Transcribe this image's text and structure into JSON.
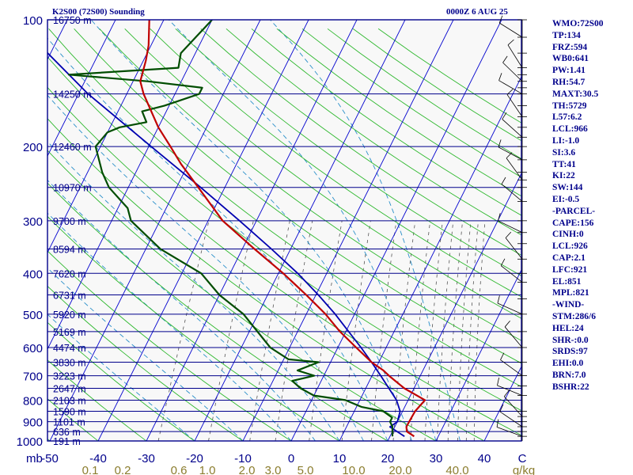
{
  "header": {
    "station": "K2S00 (72S00) Sounding",
    "time": "0000Z  6 AUG 25"
  },
  "colors": {
    "background": "#f8f8f8",
    "isobar": "#00008b",
    "isotherm": "#0000cd",
    "dry_adiabat": "#2eb82e",
    "moist_adiabat": "#2a8fc9",
    "mixing_ratio": "#555555",
    "temperature": "#c00000",
    "dewpoint": "#004d00",
    "parcel": "#0000b0",
    "tick_text_bottom": "#8b7d2e"
  },
  "chart_data": {
    "type": "skew-t",
    "pressure_unit": "mb",
    "temperature_unit": "C",
    "mixing_ratio_unit": "g/kg",
    "y_axis_scale": "log-pressure",
    "x_axis_skewed": true,
    "pressure_range": [
      1000,
      100
    ],
    "pressure_ticks": [
      100,
      200,
      300,
      400,
      500,
      600,
      700,
      800,
      900,
      1000
    ],
    "temperature_ticks": [
      -50,
      -40,
      -30,
      -20,
      -10,
      0,
      10,
      20,
      30,
      40
    ],
    "temperature_tick_labels": [
      "-50",
      "-40",
      "-30",
      "-20",
      "-10",
      "0",
      "10",
      "20",
      "30",
      "40"
    ],
    "mixing_ratio_labels": [
      "0.1",
      "0.2",
      "0.6",
      "1.0",
      "2.0",
      "3.0",
      "5.0",
      "10.0",
      "20.0",
      "40.0"
    ],
    "height_labels": [
      {
        "p": 100,
        "label": "16750 m"
      },
      {
        "p": 150,
        "label": "14250 m"
      },
      {
        "p": 200,
        "label": "12460 m"
      },
      {
        "p": 250,
        "label": "10970 m"
      },
      {
        "p": 300,
        "label": "9700 m"
      },
      {
        "p": 350,
        "label": "8594 m"
      },
      {
        "p": 400,
        "label": "7620 m"
      },
      {
        "p": 450,
        "label": "6731 m"
      },
      {
        "p": 500,
        "label": "5920 m"
      },
      {
        "p": 550,
        "label": "5169 m"
      },
      {
        "p": 600,
        "label": "4474 m"
      },
      {
        "p": 650,
        "label": "3830 m"
      },
      {
        "p": 700,
        "label": "3223 m"
      },
      {
        "p": 750,
        "label": "2647 m"
      },
      {
        "p": 800,
        "label": "2103 m"
      },
      {
        "p": 850,
        "label": "1590 m"
      },
      {
        "p": 900,
        "label": "1101 m"
      },
      {
        "p": 950,
        "label": "636 m"
      },
      {
        "p": 1000,
        "label": "191 m"
      }
    ],
    "series": [
      {
        "name": "temperature",
        "points": [
          {
            "p": 975,
            "t": 25.0
          },
          {
            "p": 950,
            "t": 23.0
          },
          {
            "p": 925,
            "t": 22.4
          },
          {
            "p": 880,
            "t": 22.5
          },
          {
            "p": 850,
            "t": 22.6
          },
          {
            "p": 800,
            "t": 23.5
          },
          {
            "p": 750,
            "t": 18.0
          },
          {
            "p": 700,
            "t": 13.5
          },
          {
            "p": 680,
            "t": 11.8
          },
          {
            "p": 650,
            "t": 8.5
          },
          {
            "p": 600,
            "t": 3.8
          },
          {
            "p": 550,
            "t": -1.2
          },
          {
            "p": 500,
            "t": -6.0
          },
          {
            "p": 450,
            "t": -12.0
          },
          {
            "p": 400,
            "t": -19.0
          },
          {
            "p": 350,
            "t": -27.5
          },
          {
            "p": 300,
            "t": -37.0
          },
          {
            "p": 250,
            "t": -45.5
          },
          {
            "p": 220,
            "t": -51.5
          },
          {
            "p": 200,
            "t": -55.5
          },
          {
            "p": 180,
            "t": -60.0
          },
          {
            "p": 150,
            "t": -66.5
          },
          {
            "p": 140,
            "t": -68.5
          },
          {
            "p": 125,
            "t": -69.5
          },
          {
            "p": 115,
            "t": -70.5
          },
          {
            "p": 100,
            "t": -73.0
          }
        ]
      },
      {
        "name": "dewpoint",
        "points": [
          {
            "p": 975,
            "t": 20.5
          },
          {
            "p": 950,
            "t": 20.0
          },
          {
            "p": 925,
            "t": 19.5
          },
          {
            "p": 900,
            "t": 18.5
          },
          {
            "p": 880,
            "t": 18.5
          },
          {
            "p": 850,
            "t": 16.0
          },
          {
            "p": 830,
            "t": 11.0
          },
          {
            "p": 800,
            "t": 7.0
          },
          {
            "p": 780,
            "t": 0.0
          },
          {
            "p": 750,
            "t": -3.5
          },
          {
            "p": 720,
            "t": -6.0
          },
          {
            "p": 700,
            "t": -2.0
          },
          {
            "p": 680,
            "t": -6.0
          },
          {
            "p": 650,
            "t": -2.5
          },
          {
            "p": 640,
            "t": -9.0
          },
          {
            "p": 600,
            "t": -14.0
          },
          {
            "p": 500,
            "t": -23.0
          },
          {
            "p": 450,
            "t": -30.0
          },
          {
            "p": 400,
            "t": -36.0
          },
          {
            "p": 350,
            "t": -47.0
          },
          {
            "p": 300,
            "t": -56.0
          },
          {
            "p": 280,
            "t": -58.0
          },
          {
            "p": 250,
            "t": -64.0
          },
          {
            "p": 230,
            "t": -67.0
          },
          {
            "p": 200,
            "t": -71.0
          },
          {
            "p": 185,
            "t": -70.0
          },
          {
            "p": 180,
            "t": -68.0
          },
          {
            "p": 175,
            "t": -63.0
          },
          {
            "p": 165,
            "t": -65.0
          },
          {
            "p": 160,
            "t": -61.0
          },
          {
            "p": 150,
            "t": -55.0
          },
          {
            "p": 145,
            "t": -55.0
          },
          {
            "p": 140,
            "t": -67.0
          },
          {
            "p": 135,
            "t": -84.0
          },
          {
            "p": 130,
            "t": -62.0
          },
          {
            "p": 120,
            "t": -63.0
          },
          {
            "p": 100,
            "t": -60.0
          }
        ]
      },
      {
        "name": "parcel",
        "points": [
          {
            "p": 975,
            "t": 23.0
          },
          {
            "p": 926,
            "t": 19.0
          },
          {
            "p": 900,
            "t": 20.0
          },
          {
            "p": 850,
            "t": 19.5
          },
          {
            "p": 800,
            "t": 17.6
          },
          {
            "p": 750,
            "t": 14.8
          },
          {
            "p": 700,
            "t": 11.8
          },
          {
            "p": 650,
            "t": 8.5
          },
          {
            "p": 600,
            "t": 4.8
          },
          {
            "p": 550,
            "t": 0.6
          },
          {
            "p": 500,
            "t": -4.0
          },
          {
            "p": 450,
            "t": -9.5
          },
          {
            "p": 400,
            "t": -16.0
          },
          {
            "p": 350,
            "t": -24.0
          },
          {
            "p": 300,
            "t": -33.5
          },
          {
            "p": 250,
            "t": -45.0
          },
          {
            "p": 200,
            "t": -59.5
          },
          {
            "p": 150,
            "t": -78.0
          },
          {
            "p": 115,
            "t": -93.0
          }
        ]
      }
    ],
    "wind_barbs": [
      {
        "p": 975
      },
      {
        "p": 950
      },
      {
        "p": 925
      },
      {
        "p": 900
      },
      {
        "p": 875
      },
      {
        "p": 850
      },
      {
        "p": 780
      },
      {
        "p": 740
      },
      {
        "p": 700
      },
      {
        "p": 650
      },
      {
        "p": 600
      },
      {
        "p": 550
      },
      {
        "p": 500
      },
      {
        "p": 460
      },
      {
        "p": 420
      },
      {
        "p": 400
      },
      {
        "p": 370
      },
      {
        "p": 340
      },
      {
        "p": 320
      },
      {
        "p": 300
      },
      {
        "p": 270
      },
      {
        "p": 250
      },
      {
        "p": 240
      },
      {
        "p": 230
      },
      {
        "p": 215
      },
      {
        "p": 200
      },
      {
        "p": 190
      },
      {
        "p": 180
      },
      {
        "p": 170
      },
      {
        "p": 160
      },
      {
        "p": 150
      },
      {
        "p": 145
      },
      {
        "p": 140
      },
      {
        "p": 135
      },
      {
        "p": 130
      },
      {
        "p": 120
      },
      {
        "p": 110
      },
      {
        "p": 100
      }
    ]
  },
  "stats": [
    "WMO:72S00",
    "TP:134",
    "FRZ:594",
    "WB0:641",
    "PW:1.41",
    "RH:54.7",
    "MAXT:30.5",
    "TH:5729",
    "L57:6.2",
    "LCL:966",
    "LI:-1.0",
    "SI:3.6",
    "TT:41",
    "KI:22",
    "SW:144",
    "EI:-0.5",
    "-PARCEL-",
    "CAPE:156",
    "CINH:0",
    "LCL:926",
    "CAP:2.1",
    "LFC:921",
    "EL:851",
    "MPL:821",
    "-WIND-",
    "STM:286/6",
    "HEL:24",
    "SHR-:0.0",
    "SRDS:97",
    "EHI:0.0",
    "BRN:7.0",
    "BSHR:22"
  ]
}
